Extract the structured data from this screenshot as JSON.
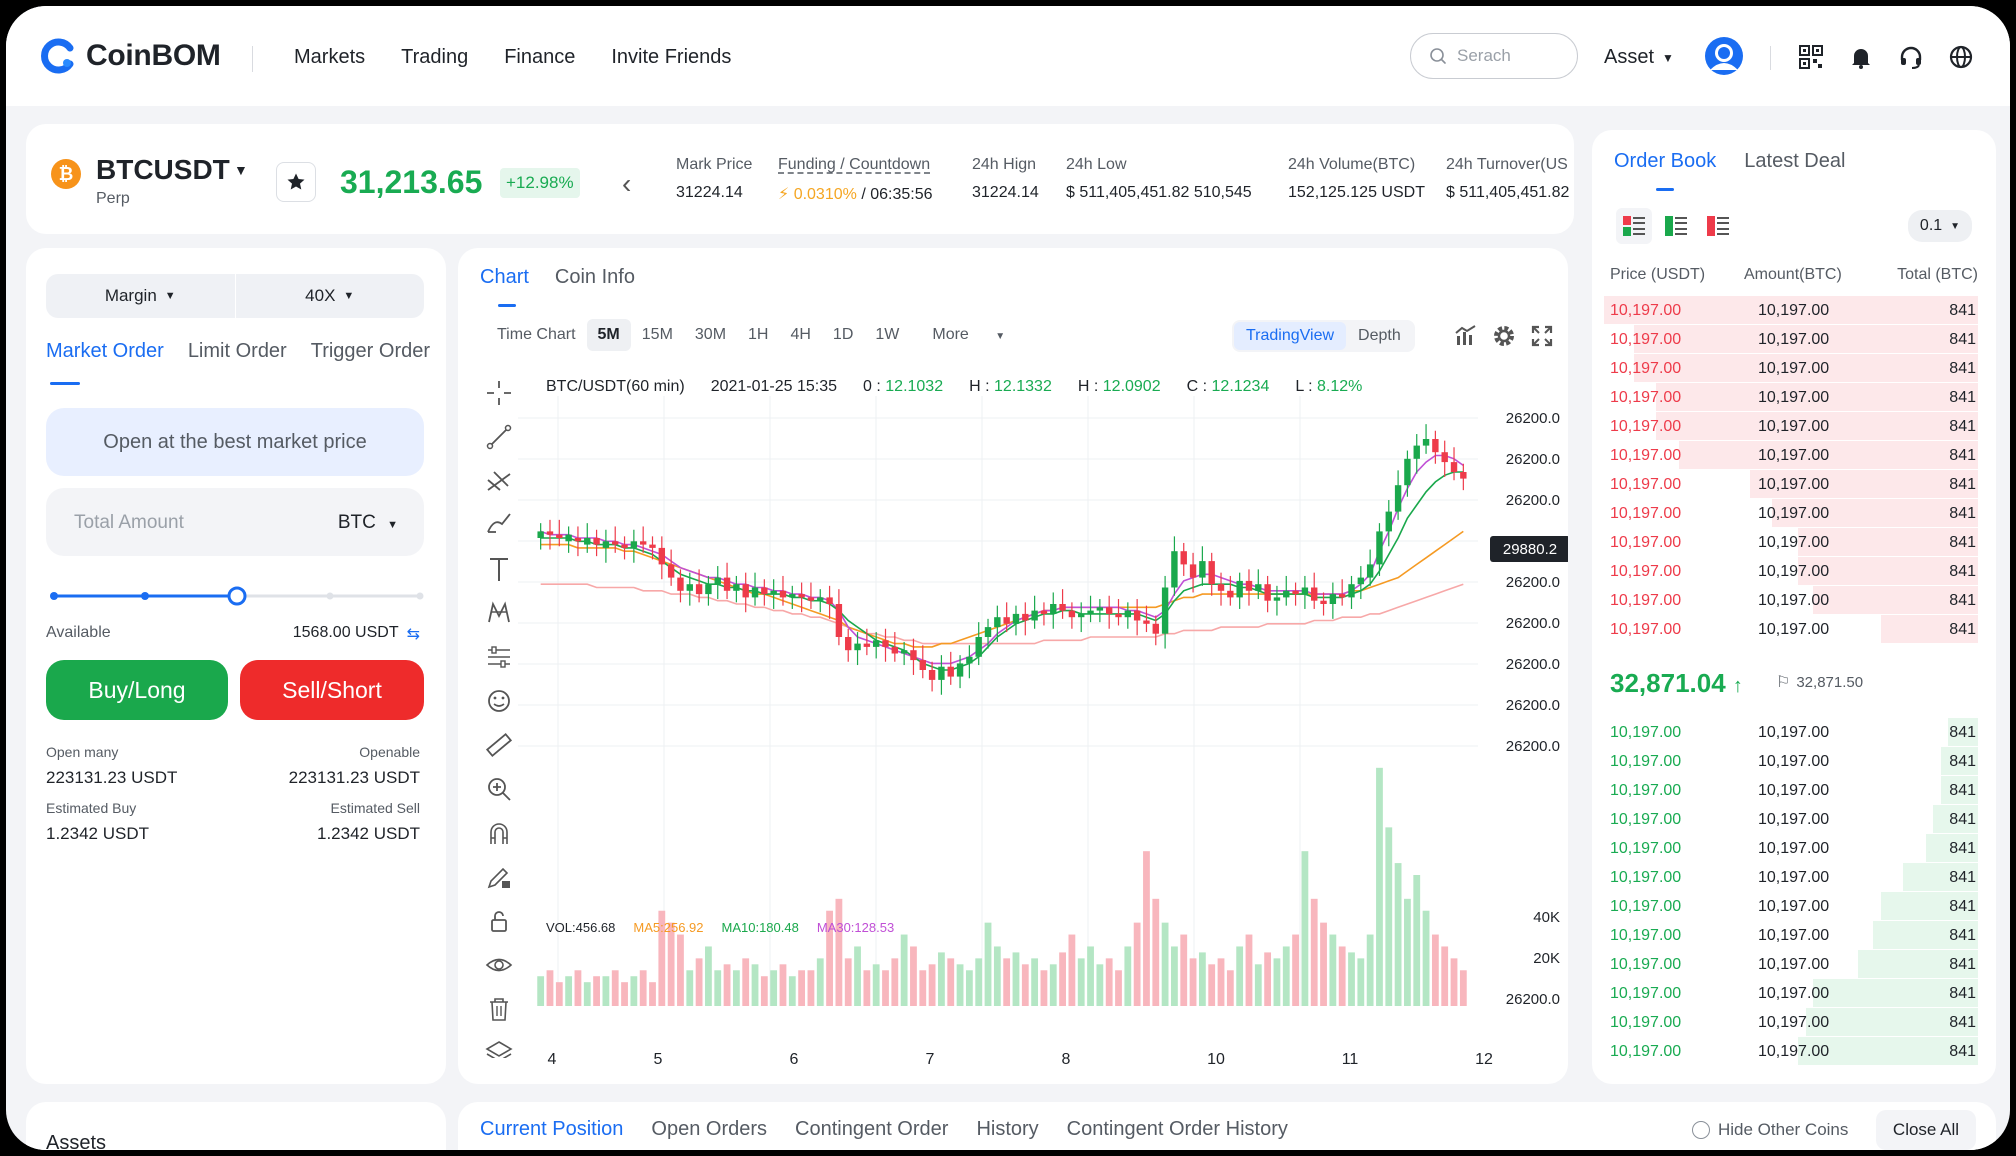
{
  "brand": {
    "name": "CoinBOM",
    "accent": "#1a6df2"
  },
  "nav": {
    "links": [
      "Markets",
      "Trading",
      "Finance",
      "Invite Friends"
    ],
    "search_placeholder": "Serach",
    "asset_label": "Asset",
    "icons": [
      "qr-code-icon",
      "bell-icon",
      "headset-icon",
      "globe-icon"
    ]
  },
  "ticker": {
    "pair": "BTCUSDT",
    "contract": "Perp",
    "last_price": "31,213.65",
    "change": "+12.98%",
    "mark_price": {
      "label": "Mark Price",
      "value": "31224.14"
    },
    "funding": {
      "label": "Funding / Countdown",
      "rate": "0.0310%",
      "sep": "/",
      "countdown": "06:35:56"
    },
    "high": {
      "label": "24h Hign",
      "value": "31224.14"
    },
    "low": {
      "label": "24h Low",
      "value": "$ 511,405,451.82 510,545"
    },
    "volume": {
      "label": "24h Volume(BTC)",
      "value": "152,125.125 USDT"
    },
    "turnover": {
      "label": "24h Turnover(US",
      "value": "$ 511,405,451.82"
    }
  },
  "order_form": {
    "margin_label": "Margin",
    "leverage": "40X",
    "tabs": [
      "Market Order",
      "Limit Order",
      "Trigger Order"
    ],
    "best_price_label": "Open at the best market price",
    "amount_placeholder": "Total Amount",
    "amount_unit": "BTC",
    "slider_percent": 50,
    "available_label": "Available",
    "available_value": "1568.00 USDT",
    "buy_label": "Buy/Long",
    "sell_label": "Sell/Short",
    "open_many_label": "Open many",
    "open_many_value": "223131.23 USDT",
    "openable_label": "Openable",
    "openable_value": "223131.23 USDT",
    "est_buy_label": "Estimated Buy",
    "est_buy_value": "1.2342 USDT",
    "est_sell_label": "Estimated Sell",
    "est_sell_value": "1.2342 USDT"
  },
  "chart": {
    "tabs": [
      "Chart",
      "Coin Info"
    ],
    "timeframes": [
      "Time Chart",
      "5M",
      "15M",
      "30M",
      "1H",
      "4H",
      "1D",
      "1W",
      "More"
    ],
    "active_timeframe": "5M",
    "views": [
      "TradingView",
      "Depth"
    ],
    "legend": {
      "symbol": "BTC/USDT(60 min)",
      "datetime": "2021-01-25 15:35",
      "o_label": "0",
      "o": "12.1032",
      "h_label": "H",
      "h": "12.1332",
      "h2_label": "H",
      "h2": "12.0902",
      "c_label": "C",
      "c": "12.1234",
      "l_label": "L",
      "l": "8.12%"
    },
    "price_tag": "29880.2",
    "volume_legend": {
      "vol": "VOL:456.68",
      "ma5": "MA5:256.92",
      "ma10": "MA10:180.48",
      "ma30": "MA30:128.53"
    },
    "colors": {
      "up": "#1aa84c",
      "down": "#ee3b4a",
      "ma5": "#f59a23",
      "ma10": "#1aa84c",
      "ma30": "#c04fd6",
      "ma60": "#f7a8a8"
    }
  },
  "chart_data": {
    "type": "candlestick",
    "y_tick_labels": [
      "26200.0",
      "26200.0",
      "26200.0",
      "26200.0",
      "26200.0",
      "26200.0",
      "26200.0",
      "26200.0",
      "26200.0"
    ],
    "x_tick_labels": [
      "4",
      "5",
      "6",
      "7",
      "8",
      "10",
      "11",
      "12"
    ],
    "volume_tick_labels": [
      "40K",
      "20K",
      "26200.0"
    ],
    "y_range": [
      0,
      100
    ],
    "close": [
      62,
      61,
      60,
      61,
      59,
      60,
      58,
      59,
      58,
      57,
      59,
      58,
      57,
      52,
      48,
      44,
      46,
      43,
      46,
      48,
      44,
      46,
      42,
      45,
      43,
      44,
      42,
      43,
      42,
      41,
      42,
      40,
      30,
      26,
      28,
      27,
      29,
      27,
      25,
      26,
      23,
      20,
      17,
      21,
      18,
      22,
      24,
      30,
      33,
      36,
      34,
      37,
      35,
      38,
      37,
      40,
      38,
      36,
      37,
      38,
      39,
      37,
      36,
      38,
      35,
      34,
      31,
      45,
      56,
      52,
      48,
      53,
      46,
      44,
      42,
      47,
      44,
      46,
      41,
      42,
      44,
      43,
      45,
      41,
      40,
      43,
      42,
      46,
      48,
      52,
      62,
      68,
      76,
      84,
      88,
      90,
      86,
      83,
      80,
      78
    ],
    "open": [
      60,
      62,
      61,
      59,
      60,
      58,
      60,
      57,
      59,
      58,
      57,
      59,
      58,
      57,
      52,
      48,
      44,
      46,
      43,
      46,
      48,
      44,
      46,
      42,
      45,
      43,
      44,
      42,
      43,
      42,
      41,
      42,
      40,
      30,
      26,
      28,
      27,
      29,
      27,
      25,
      26,
      23,
      20,
      17,
      21,
      18,
      22,
      24,
      30,
      33,
      36,
      34,
      37,
      35,
      38,
      37,
      40,
      38,
      36,
      37,
      38,
      39,
      37,
      36,
      38,
      35,
      34,
      31,
      45,
      56,
      52,
      48,
      53,
      46,
      44,
      42,
      47,
      44,
      46,
      41,
      42,
      44,
      43,
      45,
      41,
      40,
      43,
      42,
      46,
      48,
      52,
      62,
      68,
      76,
      84,
      88,
      90,
      86,
      83,
      80
    ],
    "volume": [
      5,
      6,
      4,
      5,
      6,
      4,
      5,
      5,
      6,
      4,
      5,
      6,
      4,
      16,
      14,
      12,
      6,
      8,
      10,
      6,
      7,
      6,
      8,
      7,
      5,
      6,
      7,
      5,
      6,
      6,
      8,
      16,
      18,
      8,
      10,
      6,
      7,
      6,
      8,
      12,
      10,
      6,
      7,
      9,
      8,
      7,
      6,
      8,
      14,
      10,
      8,
      9,
      7,
      8,
      6,
      7,
      9,
      12,
      8,
      10,
      7,
      8,
      6,
      10,
      14,
      26,
      18,
      14,
      10,
      12,
      8,
      9,
      7,
      8,
      6,
      10,
      12,
      7,
      9,
      8,
      10,
      12,
      26,
      18,
      14,
      12,
      10,
      9,
      8,
      12,
      40,
      30,
      24,
      18,
      22,
      16,
      12,
      10,
      8,
      6
    ],
    "ma5": [
      58,
      58,
      58,
      58,
      57,
      57,
      57,
      57,
      57,
      56,
      56,
      55,
      54,
      53,
      52,
      51,
      50,
      49,
      48,
      47,
      46,
      45,
      44,
      43,
      43,
      42,
      41,
      40,
      39,
      38,
      37,
      36,
      35,
      33,
      32,
      31,
      30,
      29,
      28,
      28,
      27,
      27,
      27,
      28,
      28,
      29,
      30,
      31,
      32,
      33,
      34,
      35,
      36,
      37,
      38,
      38,
      39,
      39,
      39,
      39,
      39,
      39,
      39,
      39,
      39,
      39,
      39,
      40,
      41,
      42,
      42,
      43,
      43,
      43,
      43,
      43,
      43,
      43,
      43,
      43,
      43,
      43,
      43,
      43,
      43,
      43,
      43,
      44,
      44,
      45,
      46,
      47,
      48,
      50,
      52,
      54,
      56,
      58,
      60,
      62
    ],
    "ma10": [
      60,
      60,
      60,
      60,
      59,
      59,
      58,
      58,
      58,
      57,
      57,
      56,
      55,
      53,
      51,
      49,
      48,
      47,
      46,
      46,
      45,
      45,
      44,
      44,
      43,
      43,
      43,
      42,
      42,
      41,
      41,
      40,
      38,
      35,
      33,
      31,
      29,
      28,
      27,
      26,
      24,
      22,
      21,
      20,
      20,
      21,
      22,
      24,
      27,
      30,
      32,
      34,
      35,
      36,
      37,
      37,
      38,
      38,
      37,
      37,
      37,
      37,
      37,
      37,
      37,
      36,
      35,
      37,
      41,
      44,
      45,
      46,
      46,
      46,
      46,
      45,
      45,
      44,
      43,
      43,
      43,
      43,
      43,
      42,
      42,
      42,
      42,
      43,
      44,
      46,
      50,
      55,
      60,
      66,
      70,
      74,
      77,
      79,
      80,
      80
    ],
    "ma30": [
      62,
      61,
      61,
      61,
      60,
      60,
      60,
      59,
      59,
      58,
      58,
      57,
      56,
      55,
      53,
      51,
      50,
      49,
      48,
      48,
      47,
      46,
      46,
      45,
      45,
      44,
      44,
      43,
      43,
      42,
      42,
      41,
      38,
      33,
      30,
      29,
      28,
      27,
      26,
      25,
      24,
      23,
      22,
      22,
      22,
      23,
      24,
      26,
      28,
      31,
      33,
      35,
      36,
      37,
      38,
      38,
      39,
      39,
      39,
      39,
      39,
      39,
      39,
      38,
      38,
      37,
      36,
      38,
      43,
      47,
      48,
      49,
      49,
      48,
      47,
      46,
      46,
      45,
      44,
      44,
      44,
      44,
      44,
      43,
      43,
      43,
      43,
      44,
      46,
      49,
      56,
      62,
      69,
      75,
      80,
      83,
      85,
      85,
      84,
      82
    ],
    "ma60": [
      46,
      46,
      46,
      46,
      46,
      46,
      45,
      45,
      45,
      45,
      45,
      44,
      44,
      44,
      43,
      43,
      43,
      42,
      42,
      41,
      41,
      40,
      40,
      39,
      39,
      38,
      38,
      37,
      37,
      36,
      36,
      35,
      34,
      33,
      32,
      31,
      31,
      30,
      30,
      29,
      29,
      28,
      28,
      28,
      28,
      28,
      28,
      28,
      28,
      28,
      28,
      28,
      28,
      28,
      29,
      29,
      29,
      29,
      29,
      30,
      30,
      30,
      30,
      30,
      30,
      30,
      30,
      31,
      31,
      32,
      32,
      32,
      32,
      33,
      33,
      33,
      33,
      33,
      34,
      34,
      34,
      34,
      34,
      35,
      35,
      35,
      36,
      36,
      36,
      37,
      37,
      38,
      39,
      40,
      41,
      42,
      43,
      44,
      45,
      46
    ]
  },
  "order_book": {
    "tabs": [
      "Order Book",
      "Latest Deal"
    ],
    "precision": "0.1",
    "headers": [
      "Price (USDT)",
      "Amount(BTC)",
      "Total (BTC)"
    ],
    "asks": [
      {
        "price": "10,197.00",
        "amount": "10,197.00",
        "total": "841",
        "depth": 1.0
      },
      {
        "price": "10,197.00",
        "amount": "10,197.00",
        "total": "841",
        "depth": 0.92
      },
      {
        "price": "10,197.00",
        "amount": "10,197.00",
        "total": "841",
        "depth": 0.92
      },
      {
        "price": "10,197.00",
        "amount": "10,197.00",
        "total": "841",
        "depth": 0.86
      },
      {
        "price": "10,197.00",
        "amount": "10,197.00",
        "total": "841",
        "depth": 0.86
      },
      {
        "price": "10,197.00",
        "amount": "10,197.00",
        "total": "841",
        "depth": 0.8
      },
      {
        "price": "10,197.00",
        "amount": "10,197.00",
        "total": "841",
        "depth": 0.61
      },
      {
        "price": "10,197.00",
        "amount": "10,197.00",
        "total": "841",
        "depth": 0.55
      },
      {
        "price": "10,197.00",
        "amount": "10,197.00",
        "total": "841",
        "depth": 0.48
      },
      {
        "price": "10,197.00",
        "amount": "10,197.00",
        "total": "841",
        "depth": 0.48
      },
      {
        "price": "10,197.00",
        "amount": "10,197.00",
        "total": "841",
        "depth": 0.44
      },
      {
        "price": "10,197.00",
        "amount": "10,197.00",
        "total": "841",
        "depth": 0.26
      }
    ],
    "mid_price": "32,871.04",
    "mark_price": "32,871.50",
    "bids": [
      {
        "price": "10,197.00",
        "amount": "10,197.00",
        "total": "841",
        "depth": 0.08
      },
      {
        "price": "10,197.00",
        "amount": "10,197.00",
        "total": "841",
        "depth": 0.1
      },
      {
        "price": "10,197.00",
        "amount": "10,197.00",
        "total": "841",
        "depth": 0.1
      },
      {
        "price": "10,197.00",
        "amount": "10,197.00",
        "total": "841",
        "depth": 0.12
      },
      {
        "price": "10,197.00",
        "amount": "10,197.00",
        "total": "841",
        "depth": 0.14
      },
      {
        "price": "10,197.00",
        "amount": "10,197.00",
        "total": "841",
        "depth": 0.2
      },
      {
        "price": "10,197.00",
        "amount": "10,197.00",
        "total": "841",
        "depth": 0.26
      },
      {
        "price": "10,197.00",
        "amount": "10,197.00",
        "total": "841",
        "depth": 0.28
      },
      {
        "price": "10,197.00",
        "amount": "10,197.00",
        "total": "841",
        "depth": 0.32
      },
      {
        "price": "10,197.00",
        "amount": "10,197.00",
        "total": "841",
        "depth": 0.44
      },
      {
        "price": "10,197.00",
        "amount": "10,197.00",
        "total": "841",
        "depth": 0.46
      },
      {
        "price": "10,197.00",
        "amount": "10,197.00",
        "total": "841",
        "depth": 0.48
      }
    ]
  },
  "bottom": {
    "assets_title": "Assets",
    "tabs": [
      "Current Position",
      "Open Orders",
      "Contingent Order",
      "History",
      "Contingent Order History"
    ],
    "hide_other": "Hide Other Coins",
    "close_all": "Close All"
  }
}
